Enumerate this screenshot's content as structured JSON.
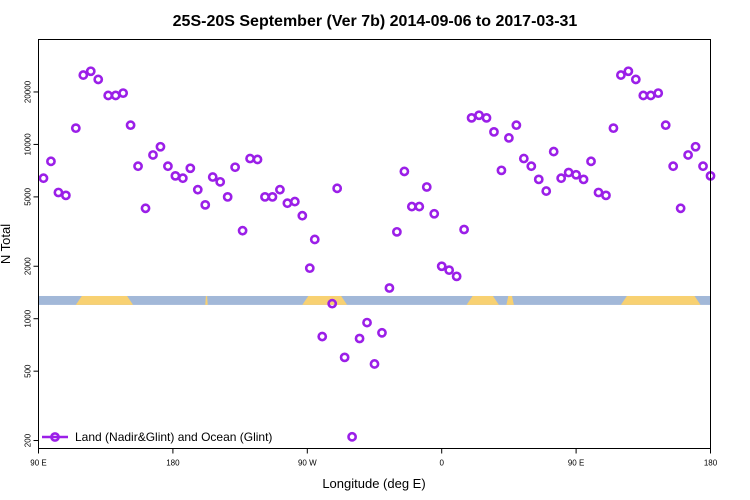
{
  "chart_data": {
    "type": "scatter",
    "title": "25S-20S September (Ver 7b)   2014-09-06 to 2017-03-31",
    "xlabel": "Longitude (deg E)",
    "ylabel": "N Total",
    "x_scale": "linear",
    "y_scale": "log",
    "xlim": [
      -90,
      180
    ],
    "ylim": [
      180,
      40000
    ],
    "x_ticks": [
      {
        "value": -90,
        "label": "90 E"
      },
      {
        "value": -36,
        "label": "180"
      },
      {
        "value": 18,
        "label": "90 W"
      },
      {
        "value": 72,
        "label": "0"
      },
      {
        "value": 126,
        "label": "90 E"
      },
      {
        "value": 180,
        "label": "180"
      }
    ],
    "y_ticks": [
      {
        "value": 200,
        "label": "200"
      },
      {
        "value": 500,
        "label": "500"
      },
      {
        "value": 1000,
        "label": "1000"
      },
      {
        "value": 2000,
        "label": "2000"
      },
      {
        "value": 5000,
        "label": "5000"
      },
      {
        "value": 10000,
        "label": "10000"
      },
      {
        "value": 20000,
        "label": "20000"
      }
    ],
    "grid": false,
    "legend_position": "bottom-left",
    "series": [
      {
        "name": "Land (Nadir&Glint) and Ocean (Glint)",
        "color": "#9b1fe8",
        "marker": "open-circle",
        "x": [
          -88,
          -85,
          -82,
          -79,
          -75,
          -72,
          -69,
          -66,
          -62,
          -59,
          -56,
          -53,
          -50,
          -47,
          -44,
          -41,
          -38,
          -35,
          -32,
          -29,
          -26,
          -23,
          -20,
          -17,
          -14,
          -11,
          -8,
          -5,
          -2,
          1,
          4,
          7,
          10,
          13,
          16,
          19,
          21,
          24,
          28,
          30,
          33,
          36,
          39,
          42,
          45,
          48,
          51,
          54,
          57,
          60,
          63,
          66,
          69,
          72,
          75,
          78,
          81,
          84,
          87,
          90,
          93,
          96,
          99,
          102,
          105,
          108,
          111,
          114,
          117,
          120,
          123,
          126,
          129,
          132,
          135,
          138,
          141,
          144,
          147,
          150,
          153,
          156,
          159,
          162,
          165,
          168,
          171,
          174,
          177,
          180
        ],
        "y": [
          6400,
          8000,
          5300,
          5100,
          12400,
          25000,
          26300,
          23600,
          19100,
          19100,
          19700,
          12900,
          7500,
          4300,
          8700,
          9700,
          7500,
          6600,
          6400,
          7300,
          5500,
          4500,
          6500,
          6100,
          5000,
          7400,
          3200,
          8300,
          8200,
          5000,
          5000,
          5500,
          4600,
          4700,
          3900,
          1950,
          2850,
          790,
          1220,
          5600,
          600,
          210,
          770,
          950,
          550,
          830,
          1500,
          3150,
          7000,
          4400,
          4400,
          5700,
          4000,
          2000,
          1900,
          1750,
          3250,
          14200,
          14700,
          14200,
          11800,
          7100,
          10900,
          12900,
          8300,
          7500,
          6300,
          5400,
          9100,
          6400,
          6900,
          6700,
          6300,
          8000,
          5300,
          5100,
          12400,
          25000,
          26300,
          23600,
          19100,
          19100,
          19700,
          12900,
          7500,
          4300,
          8700,
          9700,
          7500,
          6600
        ]
      }
    ],
    "background_strip": {
      "y_range": [
        1200,
        1350
      ],
      "ocean_color": "#a2b8d8",
      "land_color": "#f8d172",
      "land_segments": [
        [
          -75,
          -52
        ],
        [
          -23,
          -22
        ],
        [
          16,
          34
        ],
        [
          82,
          95
        ],
        [
          98,
          101
        ],
        [
          144,
          176
        ]
      ]
    }
  }
}
